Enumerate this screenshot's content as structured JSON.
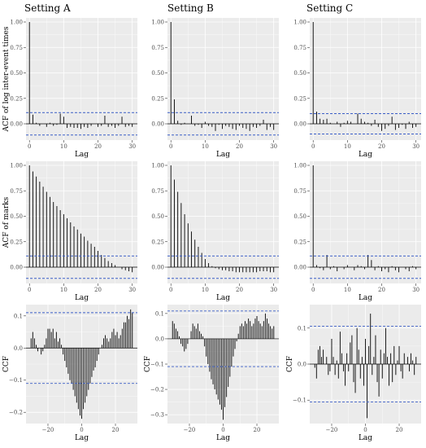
{
  "columns": [
    "Setting A",
    "Setting B",
    "Setting C"
  ],
  "colors": {
    "panel": "#ebebeb",
    "grid_major": "#ffffff",
    "bar": "#000000",
    "ci": "#3c5fc8"
  },
  "chart_data": [
    {
      "id": "A-ACF-log",
      "type": "bar",
      "col": 0,
      "row": 0,
      "title": "",
      "xlabel": "Lag",
      "ylabel": "ACF of log inter-event times",
      "xlim": [
        -1,
        31.5
      ],
      "ylim": [
        -0.16,
        1.04
      ],
      "xticks": [
        0,
        10,
        20,
        30
      ],
      "yticks": [
        0,
        0.25,
        0.5,
        0.75,
        1
      ],
      "ytick_labels": [
        "0.00",
        "0.25",
        "0.50",
        "0.75",
        "1.00"
      ],
      "ci": [
        0.11,
        -0.11
      ],
      "x": [
        0,
        1,
        2,
        3,
        4,
        5,
        6,
        7,
        8,
        9,
        10,
        11,
        12,
        13,
        14,
        15,
        16,
        17,
        18,
        19,
        20,
        21,
        22,
        23,
        24,
        25,
        26,
        27,
        28,
        29,
        30
      ],
      "values": [
        1,
        0.09,
        0.01,
        -0.02,
        0.0,
        -0.03,
        0.01,
        -0.02,
        -0.01,
        0.1,
        0.07,
        -0.04,
        -0.03,
        -0.04,
        -0.04,
        -0.05,
        -0.03,
        -0.04,
        -0.02,
        0.0,
        -0.03,
        -0.02,
        0.08,
        -0.03,
        -0.02,
        -0.04,
        -0.02,
        0.07,
        -0.03,
        -0.02,
        -0.03
      ]
    },
    {
      "id": "B-ACF-log",
      "type": "bar",
      "col": 1,
      "row": 0,
      "title": "",
      "xlabel": "Lag",
      "ylabel": "",
      "xlim": [
        -1,
        31.5
      ],
      "ylim": [
        -0.16,
        1.04
      ],
      "xticks": [
        0,
        10,
        20,
        30
      ],
      "yticks": [
        0,
        0.25,
        0.5,
        0.75,
        1
      ],
      "ytick_labels": [
        "0.00",
        "0.25",
        "0.50",
        "0.75",
        "1.00"
      ],
      "ci": [
        0.11,
        -0.11
      ],
      "x": [
        0,
        1,
        2,
        3,
        4,
        5,
        6,
        7,
        8,
        9,
        10,
        11,
        12,
        13,
        14,
        15,
        16,
        17,
        18,
        19,
        20,
        21,
        22,
        23,
        24,
        25,
        26,
        27,
        28,
        29,
        30
      ],
      "values": [
        1,
        0.24,
        0.03,
        -0.01,
        0.01,
        0.0,
        0.08,
        -0.02,
        -0.01,
        -0.04,
        0.02,
        -0.02,
        -0.03,
        -0.07,
        -0.01,
        -0.05,
        -0.02,
        -0.03,
        -0.05,
        -0.06,
        -0.02,
        -0.04,
        -0.05,
        -0.07,
        -0.03,
        -0.04,
        -0.02,
        0.04,
        -0.06,
        -0.03,
        -0.06
      ]
    },
    {
      "id": "C-ACF-log",
      "type": "bar",
      "col": 2,
      "row": 0,
      "title": "",
      "xlabel": "Lag",
      "ylabel": "",
      "xlim": [
        -1,
        31.5
      ],
      "ylim": [
        -0.16,
        1.04
      ],
      "xticks": [
        0,
        10,
        20,
        30
      ],
      "yticks": [
        0,
        0.25,
        0.5,
        0.75,
        1
      ],
      "ytick_labels": [
        "0.00",
        "0.25",
        "0.50",
        "0.75",
        "1.00"
      ],
      "ci": [
        0.1,
        -0.1
      ],
      "x": [
        0,
        1,
        2,
        3,
        4,
        5,
        6,
        7,
        8,
        9,
        10,
        11,
        12,
        13,
        14,
        15,
        16,
        17,
        18,
        19,
        20,
        21,
        22,
        23,
        24,
        25,
        26,
        27,
        28,
        29,
        30
      ],
      "values": [
        1,
        0.12,
        0.05,
        0.04,
        0.05,
        0.01,
        0.0,
        0.02,
        -0.03,
        0.01,
        0.03,
        0.02,
        0.0,
        0.1,
        0.05,
        0.02,
        0.01,
        -0.02,
        0.04,
        -0.03,
        -0.07,
        -0.05,
        -0.02,
        0.07,
        -0.06,
        -0.04,
        -0.01,
        -0.05,
        0.02,
        -0.04,
        -0.03
      ]
    },
    {
      "id": "A-ACF-marks",
      "type": "bar",
      "col": 0,
      "row": 1,
      "title": "",
      "xlabel": "Lag",
      "ylabel": "ACF of marks",
      "xlim": [
        -1,
        31.5
      ],
      "ylim": [
        -0.16,
        1.04
      ],
      "xticks": [
        0,
        10,
        20,
        30
      ],
      "yticks": [
        0,
        0.25,
        0.5,
        0.75,
        1
      ],
      "ytick_labels": [
        "0.00",
        "0.25",
        "0.50",
        "0.75",
        "1.00"
      ],
      "ci": [
        0.11,
        -0.11
      ],
      "x": [
        0,
        1,
        2,
        3,
        4,
        5,
        6,
        7,
        8,
        9,
        10,
        11,
        12,
        13,
        14,
        15,
        16,
        17,
        18,
        19,
        20,
        21,
        22,
        23,
        24,
        25,
        26,
        27,
        28,
        29,
        30
      ],
      "values": [
        1,
        0.94,
        0.89,
        0.84,
        0.79,
        0.74,
        0.69,
        0.64,
        0.6,
        0.56,
        0.52,
        0.48,
        0.44,
        0.4,
        0.37,
        0.33,
        0.3,
        0.26,
        0.23,
        0.2,
        0.16,
        0.12,
        0.09,
        0.06,
        0.04,
        0.02,
        0.0,
        -0.02,
        -0.03,
        -0.04,
        -0.05
      ]
    },
    {
      "id": "B-ACF-marks",
      "type": "bar",
      "col": 1,
      "row": 1,
      "title": "",
      "xlabel": "Lag",
      "ylabel": "",
      "xlim": [
        -1,
        31.5
      ],
      "ylim": [
        -0.16,
        1.04
      ],
      "xticks": [
        0,
        10,
        20,
        30
      ],
      "yticks": [
        0,
        0.25,
        0.5,
        0.75,
        1
      ],
      "ytick_labels": [
        "0.00",
        "0.25",
        "0.50",
        "0.75",
        "1.00"
      ],
      "ci": [
        0.11,
        -0.11
      ],
      "x": [
        0,
        1,
        2,
        3,
        4,
        5,
        6,
        7,
        8,
        9,
        10,
        11,
        12,
        13,
        14,
        15,
        16,
        17,
        18,
        19,
        20,
        21,
        22,
        23,
        24,
        25,
        26,
        27,
        28,
        29,
        30
      ],
      "values": [
        1,
        0.86,
        0.74,
        0.63,
        0.52,
        0.43,
        0.35,
        0.27,
        0.2,
        0.14,
        0.08,
        0.04,
        0.01,
        -0.01,
        -0.02,
        -0.03,
        -0.03,
        -0.04,
        -0.04,
        -0.05,
        -0.05,
        -0.05,
        -0.05,
        -0.05,
        -0.05,
        -0.05,
        -0.04,
        -0.04,
        -0.04,
        -0.05,
        -0.05
      ]
    },
    {
      "id": "C-ACF-marks",
      "type": "bar",
      "col": 2,
      "row": 1,
      "title": "",
      "xlabel": "Lag",
      "ylabel": "",
      "xlim": [
        -1,
        31.5
      ],
      "ylim": [
        -0.16,
        1.04
      ],
      "xticks": [
        0,
        10,
        20,
        30
      ],
      "yticks": [
        0,
        0.25,
        0.5,
        0.75,
        1
      ],
      "ytick_labels": [
        "0.00",
        "0.25",
        "0.50",
        "0.75",
        "1.00"
      ],
      "ci": [
        0.11,
        -0.11
      ],
      "x": [
        0,
        1,
        2,
        3,
        4,
        5,
        6,
        7,
        8,
        9,
        10,
        11,
        12,
        13,
        14,
        15,
        16,
        17,
        18,
        19,
        20,
        21,
        22,
        23,
        24,
        25,
        26,
        27,
        28,
        29,
        30
      ],
      "values": [
        1,
        0.02,
        -0.01,
        -0.03,
        0.12,
        -0.02,
        0.01,
        -0.04,
        0.0,
        -0.02,
        0.02,
        0.0,
        -0.03,
        0.02,
        0.01,
        -0.02,
        0.12,
        0.07,
        -0.03,
        0.01,
        -0.04,
        -0.02,
        -0.05,
        0.01,
        -0.03,
        -0.05,
        0.0,
        -0.02,
        -0.04,
        0.01,
        -0.02
      ]
    },
    {
      "id": "A-CCF",
      "type": "bar",
      "col": 0,
      "row": 2,
      "title": "",
      "xlabel": "Lag",
      "ylabel": "CCF",
      "xlim": [
        -33,
        33
      ],
      "ylim": [
        -0.235,
        0.135
      ],
      "xticks": [
        -20,
        0,
        20
      ],
      "yticks": [
        -0.2,
        -0.1,
        0,
        0.1
      ],
      "ytick_labels": [
        "-0.2",
        "-0.1",
        "0.0",
        "0.1"
      ],
      "ci": [
        0.11,
        -0.11
      ],
      "x": [
        -30,
        -29,
        -28,
        -27,
        -26,
        -25,
        -24,
        -23,
        -22,
        -21,
        -20,
        -19,
        -18,
        -17,
        -16,
        -15,
        -14,
        -13,
        -12,
        -11,
        -10,
        -9,
        -8,
        -7,
        -6,
        -5,
        -4,
        -3,
        -2,
        -1,
        0,
        1,
        2,
        3,
        4,
        5,
        6,
        7,
        8,
        9,
        10,
        11,
        12,
        13,
        14,
        15,
        16,
        17,
        18,
        19,
        20,
        21,
        22,
        23,
        24,
        25,
        26,
        27,
        28,
        29,
        30
      ],
      "values": [
        0.03,
        0.05,
        0.03,
        0.01,
        -0.01,
        0.0,
        -0.02,
        -0.01,
        0.01,
        0.03,
        0.06,
        0.06,
        0.05,
        0.06,
        0.03,
        0.05,
        0.02,
        0.03,
        0.01,
        -0.02,
        -0.04,
        -0.06,
        -0.08,
        -0.1,
        -0.11,
        -0.13,
        -0.15,
        -0.17,
        -0.19,
        -0.21,
        -0.22,
        -0.19,
        -0.17,
        -0.15,
        -0.13,
        -0.11,
        -0.09,
        -0.07,
        -0.06,
        -0.04,
        -0.02,
        0.0,
        0.01,
        0.03,
        0.04,
        0.03,
        0.02,
        0.03,
        0.05,
        0.06,
        0.04,
        0.05,
        0.03,
        0.04,
        0.06,
        0.08,
        0.08,
        0.1,
        0.09,
        0.12,
        0.11
      ]
    },
    {
      "id": "B-CCF",
      "type": "bar",
      "col": 1,
      "row": 2,
      "title": "",
      "xlabel": "Lag",
      "ylabel": "CCF",
      "xlim": [
        -33,
        33
      ],
      "ylim": [
        -0.335,
        0.135
      ],
      "xticks": [
        -20,
        0,
        20
      ],
      "yticks": [
        -0.3,
        -0.2,
        -0.1,
        0,
        0.1
      ],
      "ytick_labels": [
        "-0.3",
        "-0.2",
        "-0.1",
        "0.0",
        "0.1"
      ],
      "ci": [
        0.11,
        -0.11
      ],
      "x": [
        -30,
        -29,
        -28,
        -27,
        -26,
        -25,
        -24,
        -23,
        -22,
        -21,
        -20,
        -19,
        -18,
        -17,
        -16,
        -15,
        -14,
        -13,
        -12,
        -11,
        -10,
        -9,
        -8,
        -7,
        -6,
        -5,
        -4,
        -3,
        -2,
        -1,
        0,
        1,
        2,
        3,
        4,
        5,
        6,
        7,
        8,
        9,
        10,
        11,
        12,
        13,
        14,
        15,
        16,
        17,
        18,
        19,
        20,
        21,
        22,
        23,
        24,
        25,
        26,
        27,
        28,
        29,
        30
      ],
      "values": [
        0.07,
        0.06,
        0.04,
        0.03,
        0.01,
        -0.02,
        -0.03,
        -0.05,
        -0.04,
        -0.02,
        0.0,
        0.03,
        0.06,
        0.05,
        0.04,
        0.06,
        0.03,
        0.02,
        0.01,
        -0.03,
        -0.07,
        -0.1,
        -0.13,
        -0.16,
        -0.18,
        -0.2,
        -0.22,
        -0.24,
        -0.26,
        -0.28,
        -0.32,
        -0.27,
        -0.23,
        -0.19,
        -0.15,
        -0.11,
        -0.07,
        -0.04,
        -0.01,
        0.02,
        0.05,
        0.06,
        0.05,
        0.07,
        0.06,
        0.08,
        0.07,
        0.05,
        0.06,
        0.08,
        0.09,
        0.07,
        0.06,
        0.05,
        0.07,
        0.1,
        0.08,
        0.06,
        0.05,
        0.04,
        0.05
      ]
    },
    {
      "id": "C-CCF",
      "type": "bar",
      "col": 2,
      "row": 2,
      "title": "",
      "xlabel": "Lag",
      "ylabel": "CCF",
      "xlim": [
        -33,
        33
      ],
      "ylim": [
        -0.165,
        0.165
      ],
      "xticks": [
        -20,
        0,
        20
      ],
      "yticks": [
        -0.1,
        0,
        0.1
      ],
      "ytick_labels": [
        "-0.1",
        "0.0",
        "0.1"
      ],
      "ci": [
        0.105,
        -0.105
      ],
      "x": [
        -30,
        -29,
        -28,
        -27,
        -26,
        -25,
        -24,
        -23,
        -22,
        -21,
        -20,
        -19,
        -18,
        -17,
        -16,
        -15,
        -14,
        -13,
        -12,
        -11,
        -10,
        -9,
        -8,
        -7,
        -6,
        -5,
        -4,
        -3,
        -2,
        -1,
        0,
        1,
        2,
        3,
        4,
        5,
        6,
        7,
        8,
        9,
        10,
        11,
        12,
        13,
        14,
        15,
        16,
        17,
        18,
        19,
        20,
        21,
        22,
        23,
        24,
        25,
        26,
        27,
        28,
        29,
        30
      ],
      "values": [
        -0.01,
        -0.04,
        0.04,
        0.05,
        0.02,
        0.04,
        0.0,
        0.02,
        -0.03,
        -0.02,
        0.07,
        0.02,
        -0.03,
        0.01,
        -0.04,
        0.09,
        0.03,
        -0.02,
        -0.06,
        0.03,
        -0.02,
        0.06,
        0.08,
        -0.05,
        -0.08,
        0.1,
        0.04,
        -0.04,
        0.02,
        -0.06,
        0.07,
        -0.15,
        0.05,
        0.14,
        -0.03,
        0.02,
        0.08,
        -0.05,
        -0.09,
        0.04,
        -0.04,
        0.03,
        0.1,
        0.02,
        -0.06,
        0.03,
        -0.05,
        0.05,
        -0.03,
        0.01,
        0.05,
        -0.02,
        -0.04,
        0.03,
        0.0,
        0.02,
        -0.02,
        0.03,
        0.01,
        -0.03,
        0.02
      ]
    }
  ]
}
